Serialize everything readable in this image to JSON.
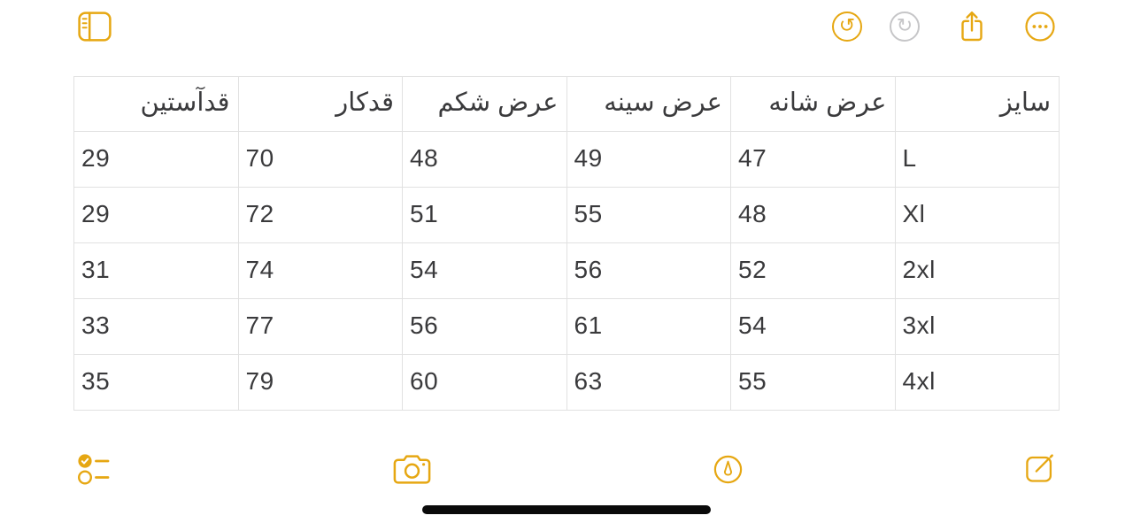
{
  "colors": {
    "accent": "#E6A712",
    "disabled": "#C6C6C8",
    "table_border": "#E1E1E1",
    "text": "#3A3A3C",
    "home_indicator": "#0A0A0A"
  },
  "toolbar_top": {
    "icons": [
      "sidebar-toggle-icon",
      "undo-icon",
      "redo-icon",
      "share-icon",
      "more-options-icon"
    ],
    "undo_glyph": "↺",
    "redo_glyph": "↻",
    "redo_enabled": false
  },
  "table": {
    "direction": "rtl",
    "headers": [
      "سایز",
      "عرض شانه",
      "عرض سینه",
      "عرض شکم",
      "قدکار",
      "قدآستین"
    ],
    "rows": [
      [
        "L",
        "47",
        "49",
        "48",
        "70",
        "29"
      ],
      [
        "Xl",
        "48",
        "55",
        "51",
        "72",
        "29"
      ],
      [
        "2xl",
        "52",
        "56",
        "54",
        "74",
        "31"
      ],
      [
        "3xl",
        "54",
        "61",
        "56",
        "77",
        "33"
      ],
      [
        "4xl",
        "55",
        "63",
        "60",
        "79",
        "35"
      ]
    ]
  },
  "toolbar_bottom": {
    "icons": [
      "checklist-icon",
      "camera-icon",
      "markup-icon",
      "compose-icon"
    ]
  }
}
